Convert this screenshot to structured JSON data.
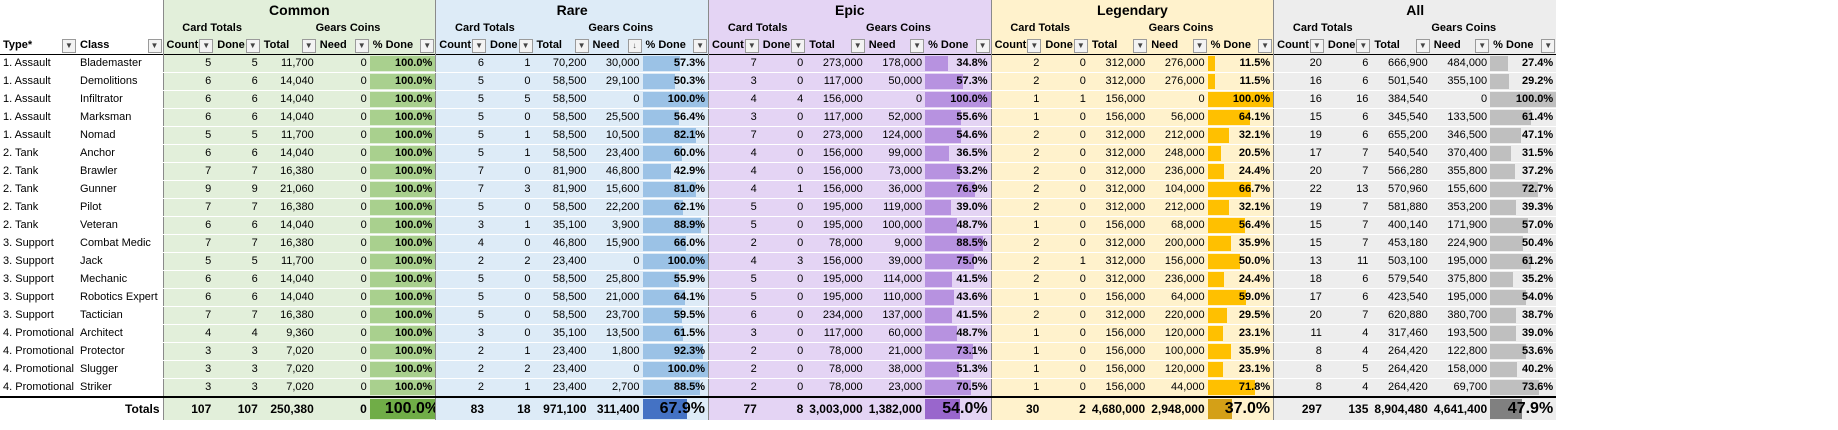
{
  "groups": [
    {
      "key": "common",
      "title": "Common",
      "fill": "#a9d08e",
      "totalFill": "#70ad47"
    },
    {
      "key": "rare",
      "title": "Rare",
      "fill": "#9bc2e6",
      "totalFill": "#4472c4"
    },
    {
      "key": "epic",
      "title": "Epic",
      "fill": "#b792e0",
      "totalFill": "#9966cc"
    },
    {
      "key": "leg",
      "title": "Legendary",
      "fill": "#ffc000",
      "totalFill": "#d4a017"
    },
    {
      "key": "all",
      "title": "All",
      "fill": "#bfbfbf",
      "totalFill": "#808080"
    }
  ],
  "subheaders": {
    "card_totals": "Card Totals",
    "gears_coins": "Gears Coins"
  },
  "columns": {
    "type": "Type*",
    "class": "Class",
    "count": "Count",
    "done": "Done",
    "total": "Total",
    "need": "Need",
    "pct": "% Done"
  },
  "rows": [
    {
      "type": "1. Assault",
      "class": "Blademaster",
      "v": [
        [
          "5",
          "5",
          "11,700",
          "0",
          "100.0%"
        ],
        [
          "6",
          "1",
          "70,200",
          "30,000",
          "57.3%"
        ],
        [
          "7",
          "0",
          "273,000",
          "178,000",
          "34.8%"
        ],
        [
          "2",
          "0",
          "312,000",
          "276,000",
          "11.5%"
        ],
        [
          "20",
          "6",
          "666,900",
          "484,000",
          "27.4%"
        ]
      ]
    },
    {
      "type": "1. Assault",
      "class": "Demolitions",
      "v": [
        [
          "6",
          "6",
          "14,040",
          "0",
          "100.0%"
        ],
        [
          "5",
          "0",
          "58,500",
          "29,100",
          "50.3%"
        ],
        [
          "3",
          "0",
          "117,000",
          "50,000",
          "57.3%"
        ],
        [
          "2",
          "0",
          "312,000",
          "276,000",
          "11.5%"
        ],
        [
          "16",
          "6",
          "501,540",
          "355,100",
          "29.2%"
        ]
      ]
    },
    {
      "type": "1. Assault",
      "class": "Infiltrator",
      "v": [
        [
          "6",
          "6",
          "14,040",
          "0",
          "100.0%"
        ],
        [
          "5",
          "5",
          "58,500",
          "0",
          "100.0%"
        ],
        [
          "4",
          "4",
          "156,000",
          "0",
          "100.0%"
        ],
        [
          "1",
          "1",
          "156,000",
          "0",
          "100.0%"
        ],
        [
          "16",
          "16",
          "384,540",
          "0",
          "100.0%"
        ]
      ]
    },
    {
      "type": "1. Assault",
      "class": "Marksman",
      "v": [
        [
          "6",
          "6",
          "14,040",
          "0",
          "100.0%"
        ],
        [
          "5",
          "0",
          "58,500",
          "25,500",
          "56.4%"
        ],
        [
          "3",
          "0",
          "117,000",
          "52,000",
          "55.6%"
        ],
        [
          "1",
          "0",
          "156,000",
          "56,000",
          "64.1%"
        ],
        [
          "15",
          "6",
          "345,540",
          "133,500",
          "61.4%"
        ]
      ]
    },
    {
      "type": "1. Assault",
      "class": "Nomad",
      "v": [
        [
          "5",
          "5",
          "11,700",
          "0",
          "100.0%"
        ],
        [
          "5",
          "1",
          "58,500",
          "10,500",
          "82.1%"
        ],
        [
          "7",
          "0",
          "273,000",
          "124,000",
          "54.6%"
        ],
        [
          "2",
          "0",
          "312,000",
          "212,000",
          "32.1%"
        ],
        [
          "19",
          "6",
          "655,200",
          "346,500",
          "47.1%"
        ]
      ]
    },
    {
      "type": "2. Tank",
      "class": "Anchor",
      "v": [
        [
          "6",
          "6",
          "14,040",
          "0",
          "100.0%"
        ],
        [
          "5",
          "1",
          "58,500",
          "23,400",
          "60.0%"
        ],
        [
          "4",
          "0",
          "156,000",
          "99,000",
          "36.5%"
        ],
        [
          "2",
          "0",
          "312,000",
          "248,000",
          "20.5%"
        ],
        [
          "17",
          "7",
          "540,540",
          "370,400",
          "31.5%"
        ]
      ]
    },
    {
      "type": "2. Tank",
      "class": "Brawler",
      "v": [
        [
          "7",
          "7",
          "16,380",
          "0",
          "100.0%"
        ],
        [
          "7",
          "0",
          "81,900",
          "46,800",
          "42.9%"
        ],
        [
          "4",
          "0",
          "156,000",
          "73,000",
          "53.2%"
        ],
        [
          "2",
          "0",
          "312,000",
          "236,000",
          "24.4%"
        ],
        [
          "20",
          "7",
          "566,280",
          "355,800",
          "37.2%"
        ]
      ]
    },
    {
      "type": "2. Tank",
      "class": "Gunner",
      "v": [
        [
          "9",
          "9",
          "21,060",
          "0",
          "100.0%"
        ],
        [
          "7",
          "3",
          "81,900",
          "15,600",
          "81.0%"
        ],
        [
          "4",
          "1",
          "156,000",
          "36,000",
          "76.9%"
        ],
        [
          "2",
          "0",
          "312,000",
          "104,000",
          "66.7%"
        ],
        [
          "22",
          "13",
          "570,960",
          "155,600",
          "72.7%"
        ]
      ]
    },
    {
      "type": "2. Tank",
      "class": "Pilot",
      "v": [
        [
          "7",
          "7",
          "16,380",
          "0",
          "100.0%"
        ],
        [
          "5",
          "0",
          "58,500",
          "22,200",
          "62.1%"
        ],
        [
          "5",
          "0",
          "195,000",
          "119,000",
          "39.0%"
        ],
        [
          "2",
          "0",
          "312,000",
          "212,000",
          "32.1%"
        ],
        [
          "19",
          "7",
          "581,880",
          "353,200",
          "39.3%"
        ]
      ]
    },
    {
      "type": "2. Tank",
      "class": "Veteran",
      "v": [
        [
          "6",
          "6",
          "14,040",
          "0",
          "100.0%"
        ],
        [
          "3",
          "1",
          "35,100",
          "3,900",
          "88.9%"
        ],
        [
          "5",
          "0",
          "195,000",
          "100,000",
          "48.7%"
        ],
        [
          "1",
          "0",
          "156,000",
          "68,000",
          "56.4%"
        ],
        [
          "15",
          "7",
          "400,140",
          "171,900",
          "57.0%"
        ]
      ]
    },
    {
      "type": "3. Support",
      "class": "Combat Medic",
      "v": [
        [
          "7",
          "7",
          "16,380",
          "0",
          "100.0%"
        ],
        [
          "4",
          "0",
          "46,800",
          "15,900",
          "66.0%"
        ],
        [
          "2",
          "0",
          "78,000",
          "9,000",
          "88.5%"
        ],
        [
          "2",
          "0",
          "312,000",
          "200,000",
          "35.9%"
        ],
        [
          "15",
          "7",
          "453,180",
          "224,900",
          "50.4%"
        ]
      ]
    },
    {
      "type": "3. Support",
      "class": "Jack",
      "v": [
        [
          "5",
          "5",
          "11,700",
          "0",
          "100.0%"
        ],
        [
          "2",
          "2",
          "23,400",
          "0",
          "100.0%"
        ],
        [
          "4",
          "3",
          "156,000",
          "39,000",
          "75.0%"
        ],
        [
          "2",
          "1",
          "312,000",
          "156,000",
          "50.0%"
        ],
        [
          "13",
          "11",
          "503,100",
          "195,000",
          "61.2%"
        ]
      ]
    },
    {
      "type": "3. Support",
      "class": "Mechanic",
      "v": [
        [
          "6",
          "6",
          "14,040",
          "0",
          "100.0%"
        ],
        [
          "5",
          "0",
          "58,500",
          "25,800",
          "55.9%"
        ],
        [
          "5",
          "0",
          "195,000",
          "114,000",
          "41.5%"
        ],
        [
          "2",
          "0",
          "312,000",
          "236,000",
          "24.4%"
        ],
        [
          "18",
          "6",
          "579,540",
          "375,800",
          "35.2%"
        ]
      ]
    },
    {
      "type": "3. Support",
      "class": "Robotics Expert",
      "v": [
        [
          "6",
          "6",
          "14,040",
          "0",
          "100.0%"
        ],
        [
          "5",
          "0",
          "58,500",
          "21,000",
          "64.1%"
        ],
        [
          "5",
          "0",
          "195,000",
          "110,000",
          "43.6%"
        ],
        [
          "1",
          "0",
          "156,000",
          "64,000",
          "59.0%"
        ],
        [
          "17",
          "6",
          "423,540",
          "195,000",
          "54.0%"
        ]
      ]
    },
    {
      "type": "3. Support",
      "class": "Tactician",
      "v": [
        [
          "7",
          "7",
          "16,380",
          "0",
          "100.0%"
        ],
        [
          "5",
          "0",
          "58,500",
          "23,700",
          "59.5%"
        ],
        [
          "6",
          "0",
          "234,000",
          "137,000",
          "41.5%"
        ],
        [
          "2",
          "0",
          "312,000",
          "220,000",
          "29.5%"
        ],
        [
          "20",
          "7",
          "620,880",
          "380,700",
          "38.7%"
        ]
      ]
    },
    {
      "type": "4. Promotional",
      "class": "Architect",
      "v": [
        [
          "4",
          "4",
          "9,360",
          "0",
          "100.0%"
        ],
        [
          "3",
          "0",
          "35,100",
          "13,500",
          "61.5%"
        ],
        [
          "3",
          "0",
          "117,000",
          "60,000",
          "48.7%"
        ],
        [
          "1",
          "0",
          "156,000",
          "120,000",
          "23.1%"
        ],
        [
          "11",
          "4",
          "317,460",
          "193,500",
          "39.0%"
        ]
      ]
    },
    {
      "type": "4. Promotional",
      "class": "Protector",
      "v": [
        [
          "3",
          "3",
          "7,020",
          "0",
          "100.0%"
        ],
        [
          "2",
          "1",
          "23,400",
          "1,800",
          "92.3%"
        ],
        [
          "2",
          "0",
          "78,000",
          "21,000",
          "73.1%"
        ],
        [
          "1",
          "0",
          "156,000",
          "100,000",
          "35.9%"
        ],
        [
          "8",
          "4",
          "264,420",
          "122,800",
          "53.6%"
        ]
      ]
    },
    {
      "type": "4. Promotional",
      "class": "Slugger",
      "v": [
        [
          "3",
          "3",
          "7,020",
          "0",
          "100.0%"
        ],
        [
          "2",
          "2",
          "23,400",
          "0",
          "100.0%"
        ],
        [
          "2",
          "0",
          "78,000",
          "38,000",
          "51.3%"
        ],
        [
          "1",
          "0",
          "156,000",
          "120,000",
          "23.1%"
        ],
        [
          "8",
          "5",
          "264,420",
          "158,000",
          "40.2%"
        ]
      ]
    },
    {
      "type": "4. Promotional",
      "class": "Striker",
      "v": [
        [
          "3",
          "3",
          "7,020",
          "0",
          "100.0%"
        ],
        [
          "2",
          "1",
          "23,400",
          "2,700",
          "88.5%"
        ],
        [
          "2",
          "0",
          "78,000",
          "23,000",
          "70.5%"
        ],
        [
          "1",
          "0",
          "156,000",
          "44,000",
          "71.8%"
        ],
        [
          "8",
          "4",
          "264,420",
          "69,700",
          "73.6%"
        ]
      ]
    }
  ],
  "totals": {
    "label": "Totals",
    "v": [
      [
        "107",
        "107",
        "250,380",
        "0",
        "100.0%"
      ],
      [
        "83",
        "18",
        "971,100",
        "311,400",
        "67.9%"
      ],
      [
        "77",
        "8",
        "3,003,000",
        "1,382,000",
        "54.0%"
      ],
      [
        "30",
        "2",
        "4,680,000",
        "2,948,000",
        "37.0%"
      ],
      [
        "297",
        "135",
        "8,904,480",
        "4,641,400",
        "47.9%"
      ]
    ]
  },
  "icons": {
    "dropdown": "dropdown-arrow-icon",
    "check": "checkmark-icon",
    "sort": "sort-desc-icon"
  }
}
